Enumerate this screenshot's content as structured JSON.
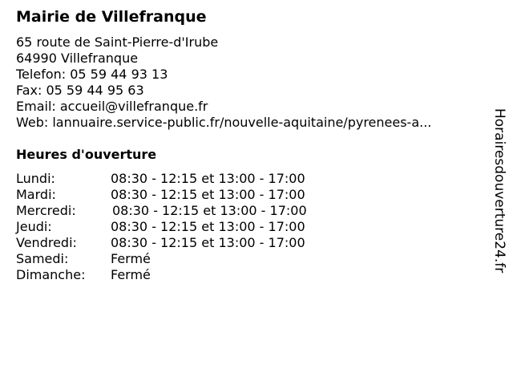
{
  "title": "Mairie de Villefranque",
  "address_line1": "65 route de Saint-Pierre-d'Irube",
  "address_line2": "64990 Villefranque",
  "phone": "Telefon: 05 59 44 93 13",
  "fax": "Fax: 05 59 44 95 63",
  "email": "Email: accueil@villefranque.fr",
  "web": "Web: lannuaire.service-public.fr/nouvelle-aquitaine/pyrenees-a...",
  "hours_heading": "Heures d'ouverture",
  "hours": [
    {
      "day": "Lundi:",
      "time": "08:30 - 12:15 et 13:00 - 17:00"
    },
    {
      "day": "Mardi:",
      "time": "08:30 - 12:15 et 13:00 - 17:00"
    },
    {
      "day": "Mercredi:",
      "time": "08:30 - 12:15 et 13:00 - 17:00"
    },
    {
      "day": "Jeudi:",
      "time": "08:30 - 12:15 et 13:00 - 17:00"
    },
    {
      "day": "Vendredi:",
      "time": "08:30 - 12:15 et 13:00 - 17:00"
    },
    {
      "day": "Samedi:",
      "time": "Fermé"
    },
    {
      "day": "Dimanche:",
      "time": "Fermé"
    }
  ],
  "watermark": "Horairesdouverture24.fr"
}
